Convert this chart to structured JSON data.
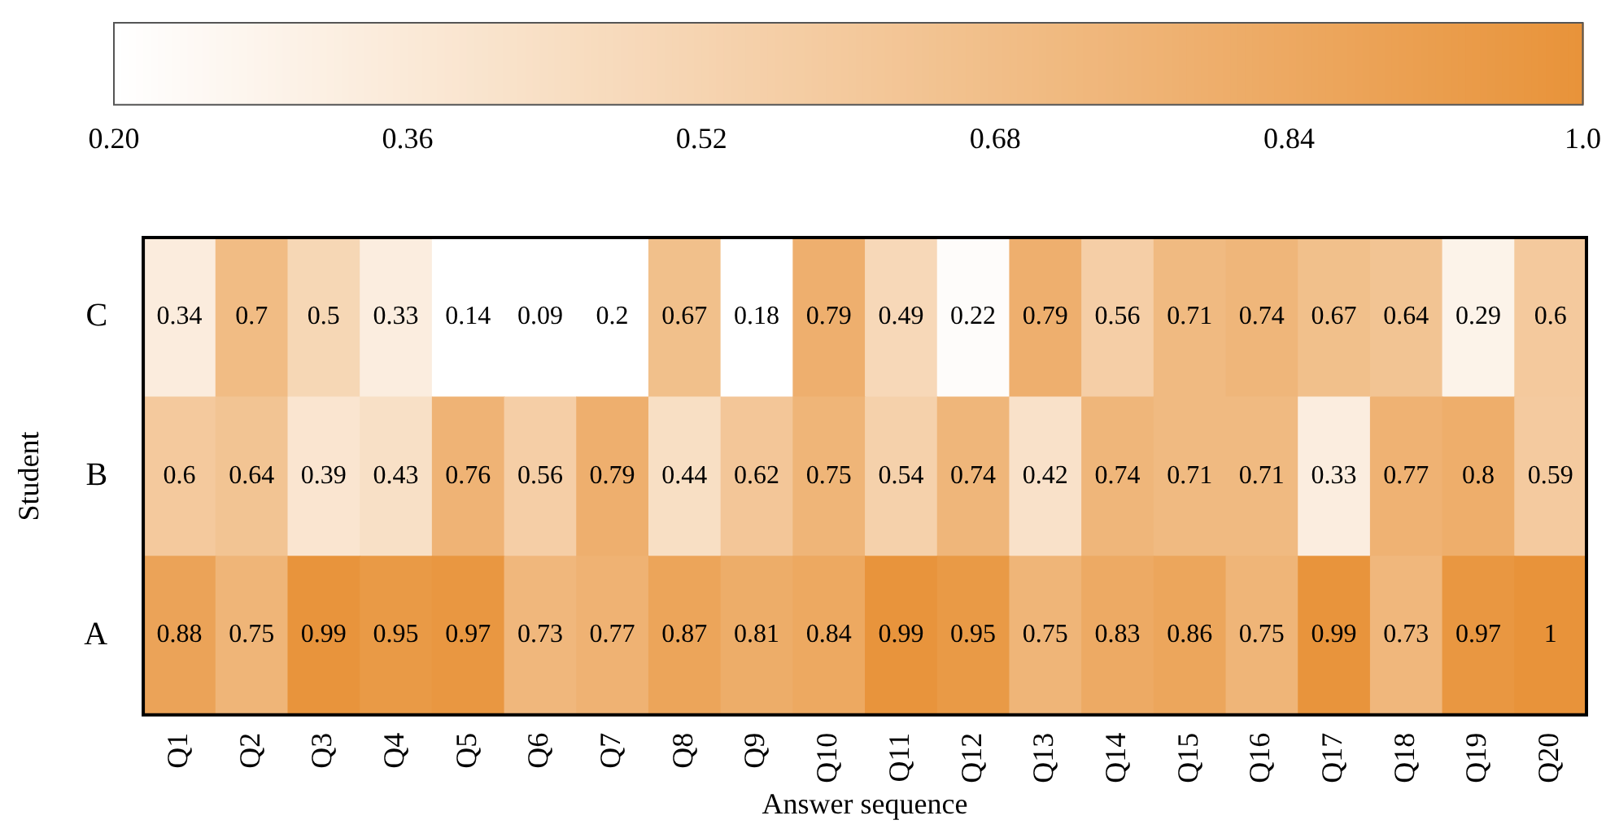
{
  "chart_data": {
    "type": "heatmap",
    "xlabel": "Answer sequence",
    "ylabel": "Student",
    "categories": [
      "Q1",
      "Q2",
      "Q3",
      "Q4",
      "Q5",
      "Q6",
      "Q7",
      "Q8",
      "Q9",
      "Q10",
      "Q11",
      "Q12",
      "Q13",
      "Q14",
      "Q15",
      "Q16",
      "Q17",
      "Q18",
      "Q19",
      "Q20"
    ],
    "y_categories": [
      "C",
      "B",
      "A"
    ],
    "cells": [
      [
        0.34,
        0.7,
        0.5,
        0.33,
        0.14,
        0.09,
        0.2,
        0.67,
        0.18,
        0.79,
        0.49,
        0.22,
        0.79,
        0.56,
        0.71,
        0.74,
        0.67,
        0.64,
        0.29,
        0.6
      ],
      [
        0.6,
        0.64,
        0.39,
        0.43,
        0.76,
        0.56,
        0.79,
        0.44,
        0.62,
        0.75,
        0.54,
        0.74,
        0.42,
        0.74,
        0.71,
        0.71,
        0.33,
        0.77,
        0.8,
        0.59
      ],
      [
        0.88,
        0.75,
        0.99,
        0.95,
        0.97,
        0.73,
        0.77,
        0.87,
        0.81,
        0.84,
        0.99,
        0.95,
        0.75,
        0.83,
        0.86,
        0.75,
        0.99,
        0.73,
        0.97,
        1
      ]
    ],
    "clim": [
      0.2,
      1.0
    ],
    "cticks": [
      {
        "value": 0.2,
        "label": "0.20"
      },
      {
        "value": 0.36,
        "label": "0.36"
      },
      {
        "value": 0.52,
        "label": "0.52"
      },
      {
        "value": 0.68,
        "label": "0.68"
      },
      {
        "value": 0.84,
        "label": "0.84"
      },
      {
        "value": 1.0,
        "label": "1.0"
      }
    ],
    "color": "#e8933a",
    "data_labels": true
  }
}
